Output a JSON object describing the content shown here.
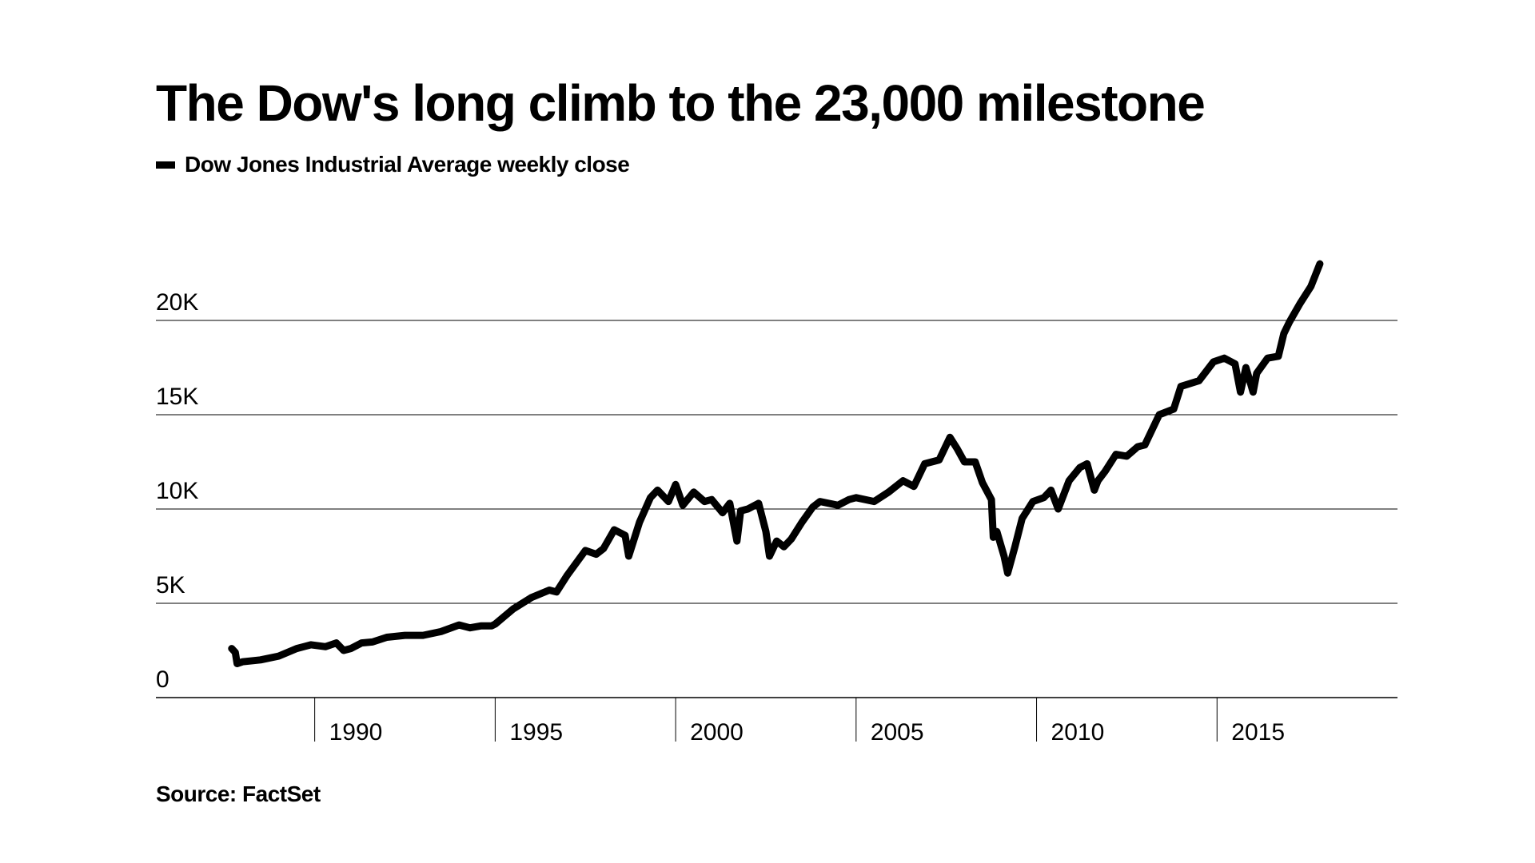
{
  "header": {
    "title": "The Dow's long climb to the 23,000 milestone",
    "legend_label": "Dow Jones Industrial Average weekly close"
  },
  "footer": {
    "source": "Source: FactSet"
  },
  "chart_data": {
    "type": "line",
    "title": "The Dow's long climb to the 23,000 milestone",
    "xlabel": "",
    "ylabel": "",
    "xlim": [
      1985.6,
      2020
    ],
    "ylim": [
      0,
      20000
    ],
    "grid": true,
    "legend_position": "top-left",
    "line_color": "#000000",
    "x_ticks": [
      {
        "value": 1990,
        "label": "1990"
      },
      {
        "value": 1995,
        "label": "1995"
      },
      {
        "value": 2000,
        "label": "2000"
      },
      {
        "value": 2005,
        "label": "2005"
      },
      {
        "value": 2010,
        "label": "2010"
      },
      {
        "value": 2015,
        "label": "2015"
      }
    ],
    "y_ticks": [
      {
        "value": 0,
        "label": "0"
      },
      {
        "value": 5000,
        "label": "5K"
      },
      {
        "value": 10000,
        "label": "10K"
      },
      {
        "value": 15000,
        "label": "15K"
      },
      {
        "value": 20000,
        "label": "20K"
      }
    ],
    "series": [
      {
        "name": "Dow Jones Industrial Average weekly close",
        "x": [
          1987.7,
          1987.8,
          1987.85,
          1988.0,
          1988.5,
          1989.0,
          1989.5,
          1989.9,
          1990.3,
          1990.6,
          1990.8,
          1991.0,
          1991.3,
          1991.6,
          1992.0,
          1992.5,
          1993.0,
          1993.5,
          1994.0,
          1994.3,
          1994.6,
          1994.9,
          1995.0,
          1995.5,
          1996.0,
          1996.5,
          1996.7,
          1997.0,
          1997.5,
          1997.8,
          1998.0,
          1998.3,
          1998.6,
          1998.7,
          1999.0,
          1999.3,
          1999.5,
          1999.8,
          2000.0,
          2000.2,
          2000.5,
          2000.8,
          2001.0,
          2001.3,
          2001.5,
          2001.7,
          2001.8,
          2002.0,
          2002.3,
          2002.5,
          2002.6,
          2002.8,
          2003.0,
          2003.2,
          2003.5,
          2003.8,
          2004.0,
          2004.5,
          2004.8,
          2005.0,
          2005.5,
          2005.9,
          2006.3,
          2006.6,
          2006.9,
          2007.3,
          2007.6,
          2007.8,
          2008.0,
          2008.3,
          2008.5,
          2008.75,
          2008.8,
          2008.9,
          2009.1,
          2009.2,
          2009.4,
          2009.6,
          2009.9,
          2010.2,
          2010.4,
          2010.6,
          2010.9,
          2011.2,
          2011.4,
          2011.6,
          2011.7,
          2011.9,
          2012.2,
          2012.5,
          2012.8,
          2013.0,
          2013.4,
          2013.8,
          2014.0,
          2014.5,
          2014.9,
          2015.2,
          2015.5,
          2015.65,
          2015.8,
          2016.0,
          2016.1,
          2016.4,
          2016.7,
          2016.85,
          2017.0,
          2017.3,
          2017.6,
          2017.85
        ],
        "values": [
          2600,
          2400,
          1800,
          1900,
          2000,
          2200,
          2600,
          2800,
          2700,
          2900,
          2500,
          2600,
          2900,
          2950,
          3200,
          3300,
          3300,
          3500,
          3850,
          3700,
          3800,
          3800,
          3900,
          4700,
          5300,
          5700,
          5600,
          6500,
          7800,
          7600,
          7900,
          8900,
          8600,
          7500,
          9300,
          10600,
          11000,
          10400,
          11300,
          10200,
          10900,
          10400,
          10500,
          9800,
          10300,
          8300,
          9900,
          10000,
          10300,
          8800,
          7500,
          8300,
          8000,
          8400,
          9300,
          10100,
          10400,
          10200,
          10500,
          10600,
          10400,
          10900,
          11500,
          11200,
          12400,
          12600,
          13800,
          13200,
          12500,
          12500,
          11400,
          10500,
          8500,
          8800,
          7500,
          6600,
          8000,
          9500,
          10400,
          10600,
          11000,
          10000,
          11500,
          12200,
          12400,
          11000,
          11500,
          12000,
          12900,
          12800,
          13300,
          13400,
          15000,
          15300,
          16500,
          16800,
          17800,
          18000,
          17700,
          16200,
          17500,
          16200,
          17200,
          18000,
          18100,
          19300,
          19900,
          20900,
          21800,
          23000
        ]
      }
    ]
  }
}
